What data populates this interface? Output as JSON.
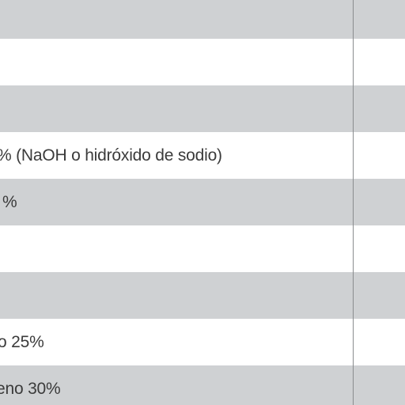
{
  "table": {
    "rows": [
      {
        "text": ""
      },
      {
        "text": ""
      },
      {
        "text": ""
      },
      {
        "text": "%  (NaOH o hidróxido de sodio)"
      },
      {
        "text": "%"
      },
      {
        "text": ""
      },
      {
        "text": ""
      },
      {
        "text": "o 25%"
      },
      {
        "text": "eno 30%"
      }
    ]
  }
}
